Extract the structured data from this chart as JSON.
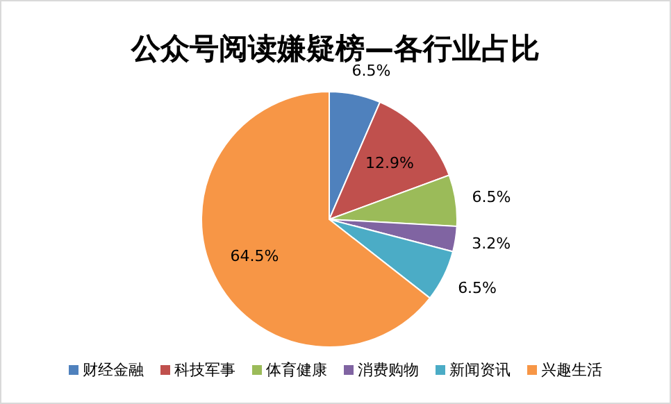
{
  "chart_data": {
    "type": "pie",
    "title": "公众号阅读嫌疑榜—各行业占比",
    "categories": [
      "财经金融",
      "科技军事",
      "体育健康",
      "消费购物",
      "新闻资讯",
      "兴趣生活"
    ],
    "values": [
      6.5,
      12.9,
      6.5,
      3.2,
      6.5,
      64.5
    ],
    "value_labels": [
      "6.5%",
      "12.9%",
      "6.5%",
      "3.2%",
      "6.5%",
      "64.5%"
    ],
    "colors": [
      "#4f81bd",
      "#c0504d",
      "#9bbb59",
      "#8064a2",
      "#4bacc6",
      "#f79646"
    ],
    "legend": "bottom"
  }
}
